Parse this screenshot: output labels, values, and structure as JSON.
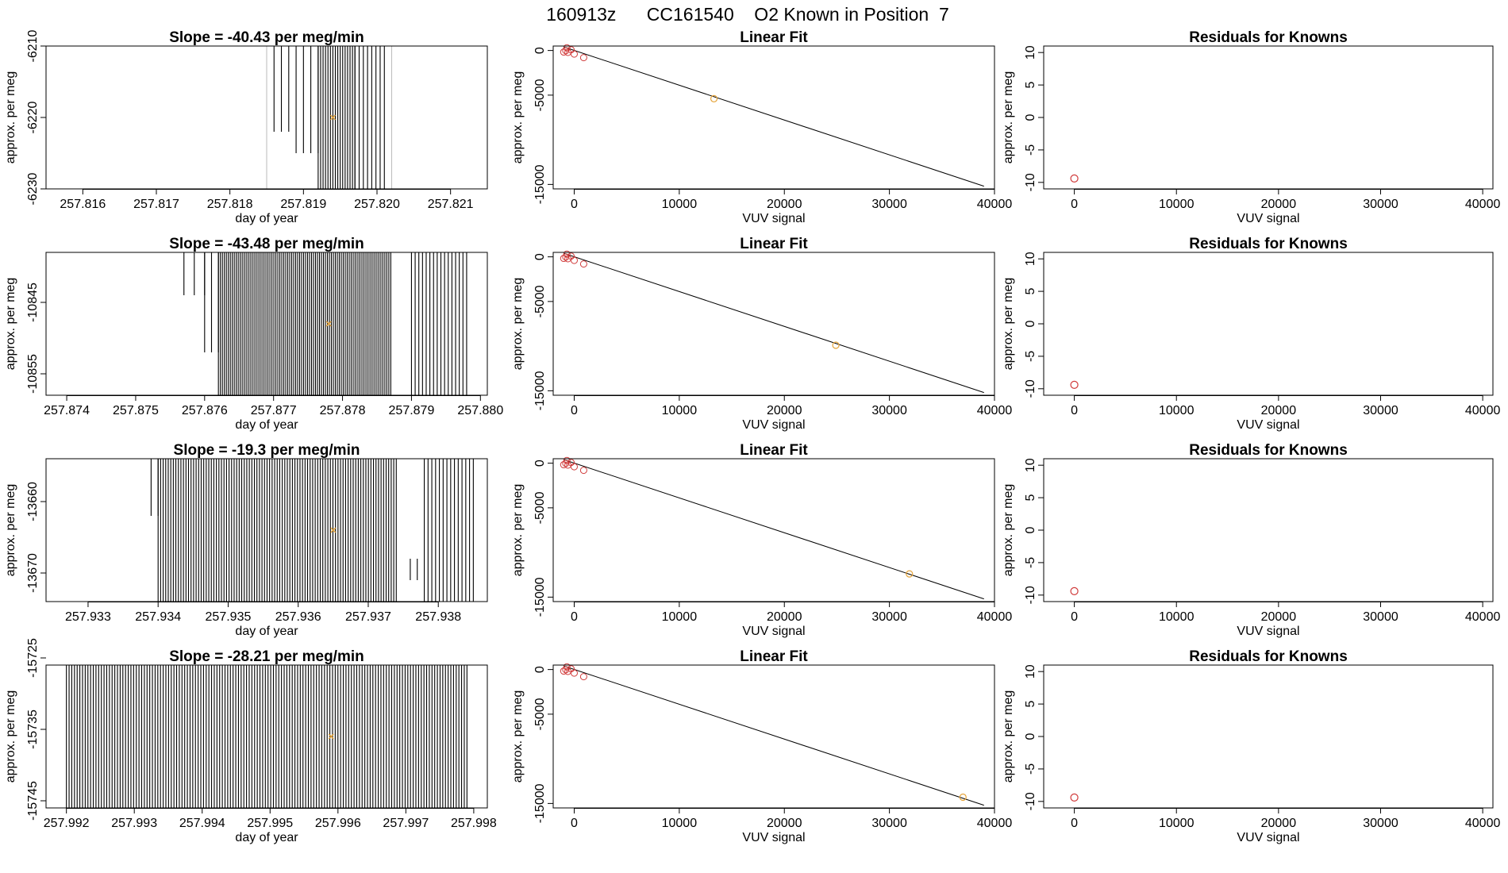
{
  "figure_title": "160913z      CC161540    O2 Known in Position  7",
  "colors": {
    "axis": "#000000",
    "trace": "#000000",
    "marker": "#e5a43a",
    "residual": "#d03a3a",
    "fitline": "#000000",
    "guide": "#bbbbbb"
  },
  "chart_data": [
    {
      "type": "time-trace",
      "id": "p00",
      "title": "Slope =  -40.43  per meg/min",
      "xlabel": "day of year",
      "ylabel": "approx. per meg",
      "xlim": [
        257.8155,
        257.8215
      ],
      "ylim": [
        -6230,
        -6210
      ],
      "xticks": [
        "257.816",
        "257.817",
        "257.818",
        "257.819",
        "257.820",
        "257.821"
      ],
      "yticks": [
        "-6230",
        "-6220",
        "-6210"
      ],
      "segments": [
        {
          "from": 257.8186,
          "to": 257.8188,
          "n": 3,
          "bottom": -6222,
          "top": -6210
        },
        {
          "from": 257.8189,
          "to": 257.8192,
          "n": 4,
          "bottom": -6225,
          "top": -6210
        },
        {
          "from": 257.8192,
          "to": 257.8197,
          "n": 16,
          "bottom": -6230,
          "top": -6210
        },
        {
          "from": 257.8197,
          "to": 257.8201,
          "n": 8,
          "bottom": -6230,
          "top": -6210
        }
      ],
      "guides": [
        257.8185,
        257.8202
      ],
      "marker": {
        "x": 257.8194,
        "y": -6220
      }
    },
    {
      "type": "scatter-line",
      "id": "p01",
      "title": "Linear Fit",
      "xlabel": "VUV signal",
      "ylabel": "approx. per meg",
      "xlim": [
        -2000,
        40000
      ],
      "ylim": [
        -15500,
        500
      ],
      "xticks": [
        "0",
        "10000",
        "20000",
        "30000",
        "40000"
      ],
      "yticks": [
        "-15000",
        "-5000",
        "0"
      ],
      "line": [
        [
          -1000,
          400
        ],
        [
          39000,
          -15200
        ]
      ],
      "points": [
        [
          -700,
          305
        ],
        [
          -300,
          80
        ],
        [
          -800,
          -20
        ],
        [
          -600,
          -210
        ],
        [
          -1000,
          -170
        ],
        [
          0,
          -400
        ],
        [
          900,
          -800
        ]
      ],
      "highlight": [
        13300,
        -5400
      ]
    },
    {
      "type": "scatter",
      "id": "p02",
      "title": "Residuals for Knowns",
      "xlabel": "VUV signal",
      "ylabel": "approx. per meg",
      "xlim": [
        -3000,
        41000
      ],
      "ylim": [
        -11,
        11
      ],
      "xticks": [
        "0",
        "10000",
        "20000",
        "30000",
        "40000"
      ],
      "yticks": [
        "-10",
        "-5",
        "0",
        "5",
        "10"
      ],
      "points": [
        [
          0,
          -9.4
        ]
      ]
    },
    {
      "type": "time-trace",
      "id": "p10",
      "title": "Slope =  -43.48  per meg/min",
      "xlabel": "day of year",
      "ylabel": "approx. per meg",
      "xlim": [
        257.8737,
        257.8801
      ],
      "ylim": [
        -10858,
        -10838
      ],
      "xticks": [
        "257.874",
        "257.875",
        "257.876",
        "257.877",
        "257.878",
        "257.879",
        "257.880"
      ],
      "yticks": [
        "-10855",
        "-10845"
      ],
      "segments": [
        {
          "from": 257.8757,
          "to": 257.876,
          "n": 3,
          "bottom": -10844,
          "top": -10838
        },
        {
          "from": 257.876,
          "to": 257.8762,
          "n": 3,
          "bottom": -10852,
          "top": -10838
        },
        {
          "from": 257.8762,
          "to": 257.8787,
          "n": 88,
          "bottom": -10858,
          "top": -10838
        },
        {
          "from": 257.879,
          "to": 257.8798,
          "n": 16,
          "bottom": -10858,
          "top": -10838
        }
      ],
      "guides": [],
      "marker": {
        "x": 257.8778,
        "y": -10848
      }
    },
    {
      "type": "scatter-line",
      "id": "p11",
      "title": "Linear Fit",
      "xlabel": "VUV signal",
      "ylabel": "approx. per meg",
      "xlim": [
        -2000,
        40000
      ],
      "ylim": [
        -15500,
        500
      ],
      "xticks": [
        "0",
        "10000",
        "20000",
        "30000",
        "40000"
      ],
      "yticks": [
        "-15000",
        "-5000",
        "0"
      ],
      "line": [
        [
          -1000,
          400
        ],
        [
          39000,
          -15200
        ]
      ],
      "points": [
        [
          -700,
          305
        ],
        [
          -300,
          80
        ],
        [
          -800,
          -20
        ],
        [
          -600,
          -210
        ],
        [
          -1000,
          -170
        ],
        [
          0,
          -400
        ],
        [
          900,
          -800
        ]
      ],
      "highlight": [
        24900,
        -9900
      ]
    },
    {
      "type": "scatter",
      "id": "p12",
      "title": "Residuals for Knowns",
      "xlabel": "VUV signal",
      "ylabel": "approx. per meg",
      "xlim": [
        -3000,
        41000
      ],
      "ylim": [
        -11,
        11
      ],
      "xticks": [
        "0",
        "10000",
        "20000",
        "30000",
        "40000"
      ],
      "yticks": [
        "-10",
        "-5",
        "0",
        "5",
        "10"
      ],
      "points": [
        [
          0,
          -9.4
        ]
      ]
    },
    {
      "type": "time-trace",
      "id": "p20",
      "title": "Slope =  -19.3  per meg/min",
      "xlabel": "day of year",
      "ylabel": "approx. per meg",
      "xlim": [
        257.9324,
        257.9387
      ],
      "ylim": [
        -13674,
        -13654
      ],
      "xticks": [
        "257.933",
        "257.934",
        "257.935",
        "257.936",
        "257.937",
        "257.938"
      ],
      "yticks": [
        "-13670",
        "-13660"
      ],
      "segments": [
        {
          "from": 257.9339,
          "to": 257.934,
          "n": 2,
          "bottom": -13662,
          "top": -13654
        },
        {
          "from": 257.934,
          "to": 257.9374,
          "n": 95,
          "bottom": -13674,
          "top": -13654
        },
        {
          "from": 257.9376,
          "to": 257.9377,
          "n": 2,
          "bottom": -13671,
          "top": -13668
        },
        {
          "from": 257.9378,
          "to": 257.9385,
          "n": 14,
          "bottom": -13674,
          "top": -13654
        }
      ],
      "guides": [],
      "marker": {
        "x": 257.9365,
        "y": -13664
      }
    },
    {
      "type": "scatter-line",
      "id": "p21",
      "title": "Linear Fit",
      "xlabel": "VUV signal",
      "ylabel": "approx. per meg",
      "xlim": [
        -2000,
        40000
      ],
      "ylim": [
        -15500,
        500
      ],
      "xticks": [
        "0",
        "10000",
        "20000",
        "30000",
        "40000"
      ],
      "yticks": [
        "-15000",
        "-5000",
        "0"
      ],
      "line": [
        [
          -1000,
          400
        ],
        [
          39000,
          -15200
        ]
      ],
      "points": [
        [
          -700,
          305
        ],
        [
          -300,
          80
        ],
        [
          -800,
          -20
        ],
        [
          -600,
          -210
        ],
        [
          -1000,
          -170
        ],
        [
          0,
          -400
        ],
        [
          900,
          -800
        ]
      ],
      "highlight": [
        31900,
        -12400
      ]
    },
    {
      "type": "scatter",
      "id": "p22",
      "title": "Residuals for Knowns",
      "xlabel": "VUV signal",
      "ylabel": "approx. per meg",
      "xlim": [
        -3000,
        41000
      ],
      "ylim": [
        -11,
        11
      ],
      "xticks": [
        "0",
        "10000",
        "20000",
        "30000",
        "40000"
      ],
      "yticks": [
        "-10",
        "-5",
        "0",
        "5",
        "10"
      ],
      "points": [
        [
          0,
          -9.4
        ]
      ]
    },
    {
      "type": "time-trace",
      "id": "p30",
      "title": "Slope =  -28.21  per meg/min",
      "xlabel": "day of year",
      "ylabel": "approx. per meg",
      "xlim": [
        257.9917,
        257.9982
      ],
      "ylim": [
        -15746,
        -15726
      ],
      "xticks": [
        "257.992",
        "257.993",
        "257.994",
        "257.995",
        "257.996",
        "257.997",
        "257.998"
      ],
      "yticks": [
        "-15745",
        "-15735",
        "-15725"
      ],
      "segments": [
        {
          "from": 257.992,
          "to": 257.9979,
          "n": 150,
          "bottom": -15746,
          "top": -15726
        }
      ],
      "guides": [],
      "marker": {
        "x": 257.9959,
        "y": -15736
      }
    },
    {
      "type": "scatter-line",
      "id": "p31",
      "title": "Linear Fit",
      "xlabel": "VUV signal",
      "ylabel": "approx. per meg",
      "xlim": [
        -2000,
        40000
      ],
      "ylim": [
        -15500,
        500
      ],
      "xticks": [
        "0",
        "10000",
        "20000",
        "30000",
        "40000"
      ],
      "yticks": [
        "-15000",
        "-5000",
        "0"
      ],
      "line": [
        [
          -1000,
          400
        ],
        [
          39000,
          -15200
        ]
      ],
      "points": [
        [
          -700,
          305
        ],
        [
          -300,
          80
        ],
        [
          -800,
          -20
        ],
        [
          -600,
          -210
        ],
        [
          -1000,
          -170
        ],
        [
          0,
          -400
        ],
        [
          900,
          -800
        ]
      ],
      "highlight": [
        37000,
        -14300
      ]
    },
    {
      "type": "scatter",
      "id": "p32",
      "title": "Residuals for Knowns",
      "xlabel": "VUV signal",
      "ylabel": "approx. per meg",
      "xlim": [
        -3000,
        41000
      ],
      "ylim": [
        -11,
        11
      ],
      "xticks": [
        "0",
        "10000",
        "20000",
        "30000",
        "40000"
      ],
      "yticks": [
        "-10",
        "-5",
        "0",
        "5",
        "10"
      ],
      "points": [
        [
          0,
          -9.4
        ]
      ]
    }
  ]
}
